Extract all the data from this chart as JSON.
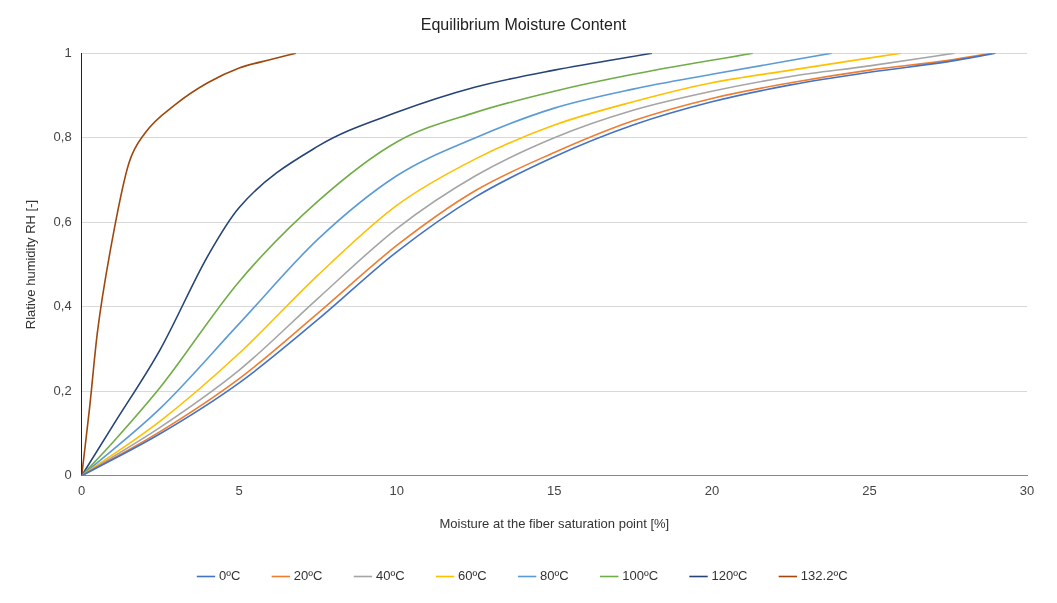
{
  "chart_data": {
    "type": "line",
    "title": "Equilibrium Moisture Content",
    "xlabel": "Moisture at the fiber saturation point [%]",
    "ylabel": "Rlative humidity RH [-]",
    "xlim": [
      0,
      30
    ],
    "xticks": [
      0,
      5,
      10,
      15,
      20,
      25,
      30
    ],
    "ylim": [
      0,
      1
    ],
    "yticks": [
      0,
      {
        "value": 0.2,
        "label": "0,2"
      },
      {
        "value": 0.4,
        "label": "0,4"
      },
      {
        "value": 0.6,
        "label": "0,6"
      },
      {
        "value": 0.8,
        "label": "0,8"
      },
      1
    ],
    "grid": "y",
    "legend": "bottom",
    "marker": "none",
    "line_style": "solid",
    "series": [
      {
        "name": "0ºC",
        "color": "#4472c4",
        "x": [
          0,
          2.5,
          5,
          7.5,
          10,
          12.5,
          15,
          17.5,
          20,
          22.5,
          25,
          27.5,
          29
        ],
        "values": [
          0,
          0.1,
          0.22,
          0.37,
          0.53,
          0.66,
          0.755,
          0.83,
          0.885,
          0.925,
          0.955,
          0.98,
          1
        ]
      },
      {
        "name": "20ºC",
        "color": "#ed7d31",
        "x": [
          0,
          2.5,
          5,
          7.5,
          10,
          12.5,
          15,
          17.5,
          20,
          22.5,
          25,
          27.5,
          28.9
        ],
        "values": [
          0,
          0.105,
          0.23,
          0.385,
          0.545,
          0.675,
          0.765,
          0.84,
          0.893,
          0.93,
          0.96,
          0.983,
          1
        ]
      },
      {
        "name": "40ºC",
        "color": "#a5a5a5",
        "x": [
          0,
          2.5,
          5,
          7.5,
          10,
          12.5,
          15,
          17.5,
          20,
          22.5,
          25,
          27.7
        ],
        "values": [
          0,
          0.115,
          0.25,
          0.42,
          0.585,
          0.71,
          0.8,
          0.865,
          0.91,
          0.945,
          0.97,
          1
        ]
      },
      {
        "name": "60ºC",
        "color": "#ffc000",
        "x": [
          0,
          2.5,
          5,
          7.5,
          10,
          12.5,
          15,
          17.5,
          20,
          22.5,
          26
        ],
        "values": [
          0,
          0.13,
          0.29,
          0.475,
          0.64,
          0.75,
          0.83,
          0.885,
          0.93,
          0.96,
          1
        ]
      },
      {
        "name": "80ºC",
        "color": "#5b9bd5",
        "x": [
          0,
          2.5,
          5,
          7.5,
          10,
          12.5,
          15,
          17.5,
          20,
          23.8
        ],
        "values": [
          0,
          0.16,
          0.36,
          0.56,
          0.71,
          0.8,
          0.87,
          0.915,
          0.95,
          1
        ]
      },
      {
        "name": "100ºC",
        "color": "#70ad47",
        "x": [
          0,
          1,
          2.5,
          5,
          7.5,
          10,
          12.5,
          15,
          17.5,
          21.3
        ],
        "values": [
          0,
          0.08,
          0.21,
          0.46,
          0.65,
          0.79,
          0.86,
          0.91,
          0.95,
          1
        ]
      },
      {
        "name": "120ºC",
        "color": "#264478",
        "x": [
          0,
          1,
          2.5,
          4,
          5,
          7.5,
          10,
          12.5,
          15,
          18.1
        ],
        "values": [
          0,
          0.12,
          0.3,
          0.52,
          0.635,
          0.78,
          0.86,
          0.92,
          0.96,
          1
        ]
      },
      {
        "name": "132.2ºC",
        "color": "#9e480e",
        "x": [
          0,
          0.25,
          0.5,
          1,
          1.5,
          2,
          3,
          4,
          5,
          6,
          6.8
        ],
        "values": [
          0,
          0.16,
          0.34,
          0.57,
          0.74,
          0.81,
          0.88,
          0.93,
          0.965,
          0.985,
          1
        ]
      }
    ]
  }
}
